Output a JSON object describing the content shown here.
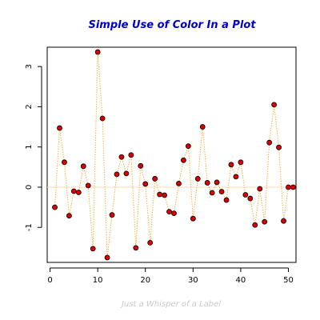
{
  "chart_data": {
    "type": "scatter",
    "title": "Simple Use of Color In a Plot",
    "xlabel": "Just a Whisper of a Label",
    "ylabel": "",
    "connect_points": true,
    "line_style": "dotted",
    "horizontal_reference_line": 0,
    "xlim": [
      -0.6,
      51.6
    ],
    "ylim": [
      -1.87,
      3.48
    ],
    "x_ticks": [
      0,
      10,
      20,
      30,
      40,
      50
    ],
    "y_ticks": [
      -1,
      0,
      1,
      2,
      3
    ],
    "x": [
      1,
      2,
      3,
      4,
      5,
      6,
      7,
      8,
      9,
      10,
      11,
      12,
      13,
      14,
      15,
      16,
      17,
      18,
      19,
      20,
      21,
      22,
      23,
      24,
      25,
      26,
      27,
      28,
      29,
      30,
      31,
      32,
      33,
      34,
      35,
      36,
      37,
      38,
      39,
      40,
      41,
      42,
      43,
      44,
      45,
      46,
      47,
      48,
      49,
      50,
      51
    ],
    "y": [
      -0.5,
      1.47,
      0.62,
      -0.71,
      -0.1,
      -0.13,
      0.52,
      0.04,
      -1.53,
      3.36,
      1.71,
      -1.75,
      -0.69,
      0.32,
      0.75,
      0.34,
      0.8,
      -1.51,
      0.53,
      0.08,
      -1.38,
      0.21,
      -0.18,
      -0.2,
      -0.61,
      -0.65,
      0.09,
      0.67,
      1.02,
      -0.78,
      0.21,
      1.5,
      0.11,
      -0.14,
      0.12,
      -0.11,
      -0.32,
      0.56,
      0.26,
      0.62,
      -0.19,
      -0.28,
      -0.94,
      -0.04,
      -0.86,
      1.11,
      2.05,
      0.99,
      -0.84,
      0.0,
      0.0
    ],
    "grid": false,
    "legend": "none",
    "colors": {
      "title": "#0000cc",
      "xlabel": "#c9c9c9",
      "point_fill": "#dd0000",
      "point_stroke": "#000000",
      "connector": "#f5b042",
      "reference_line": "#f5deb3",
      "axis": "#000000"
    }
  }
}
